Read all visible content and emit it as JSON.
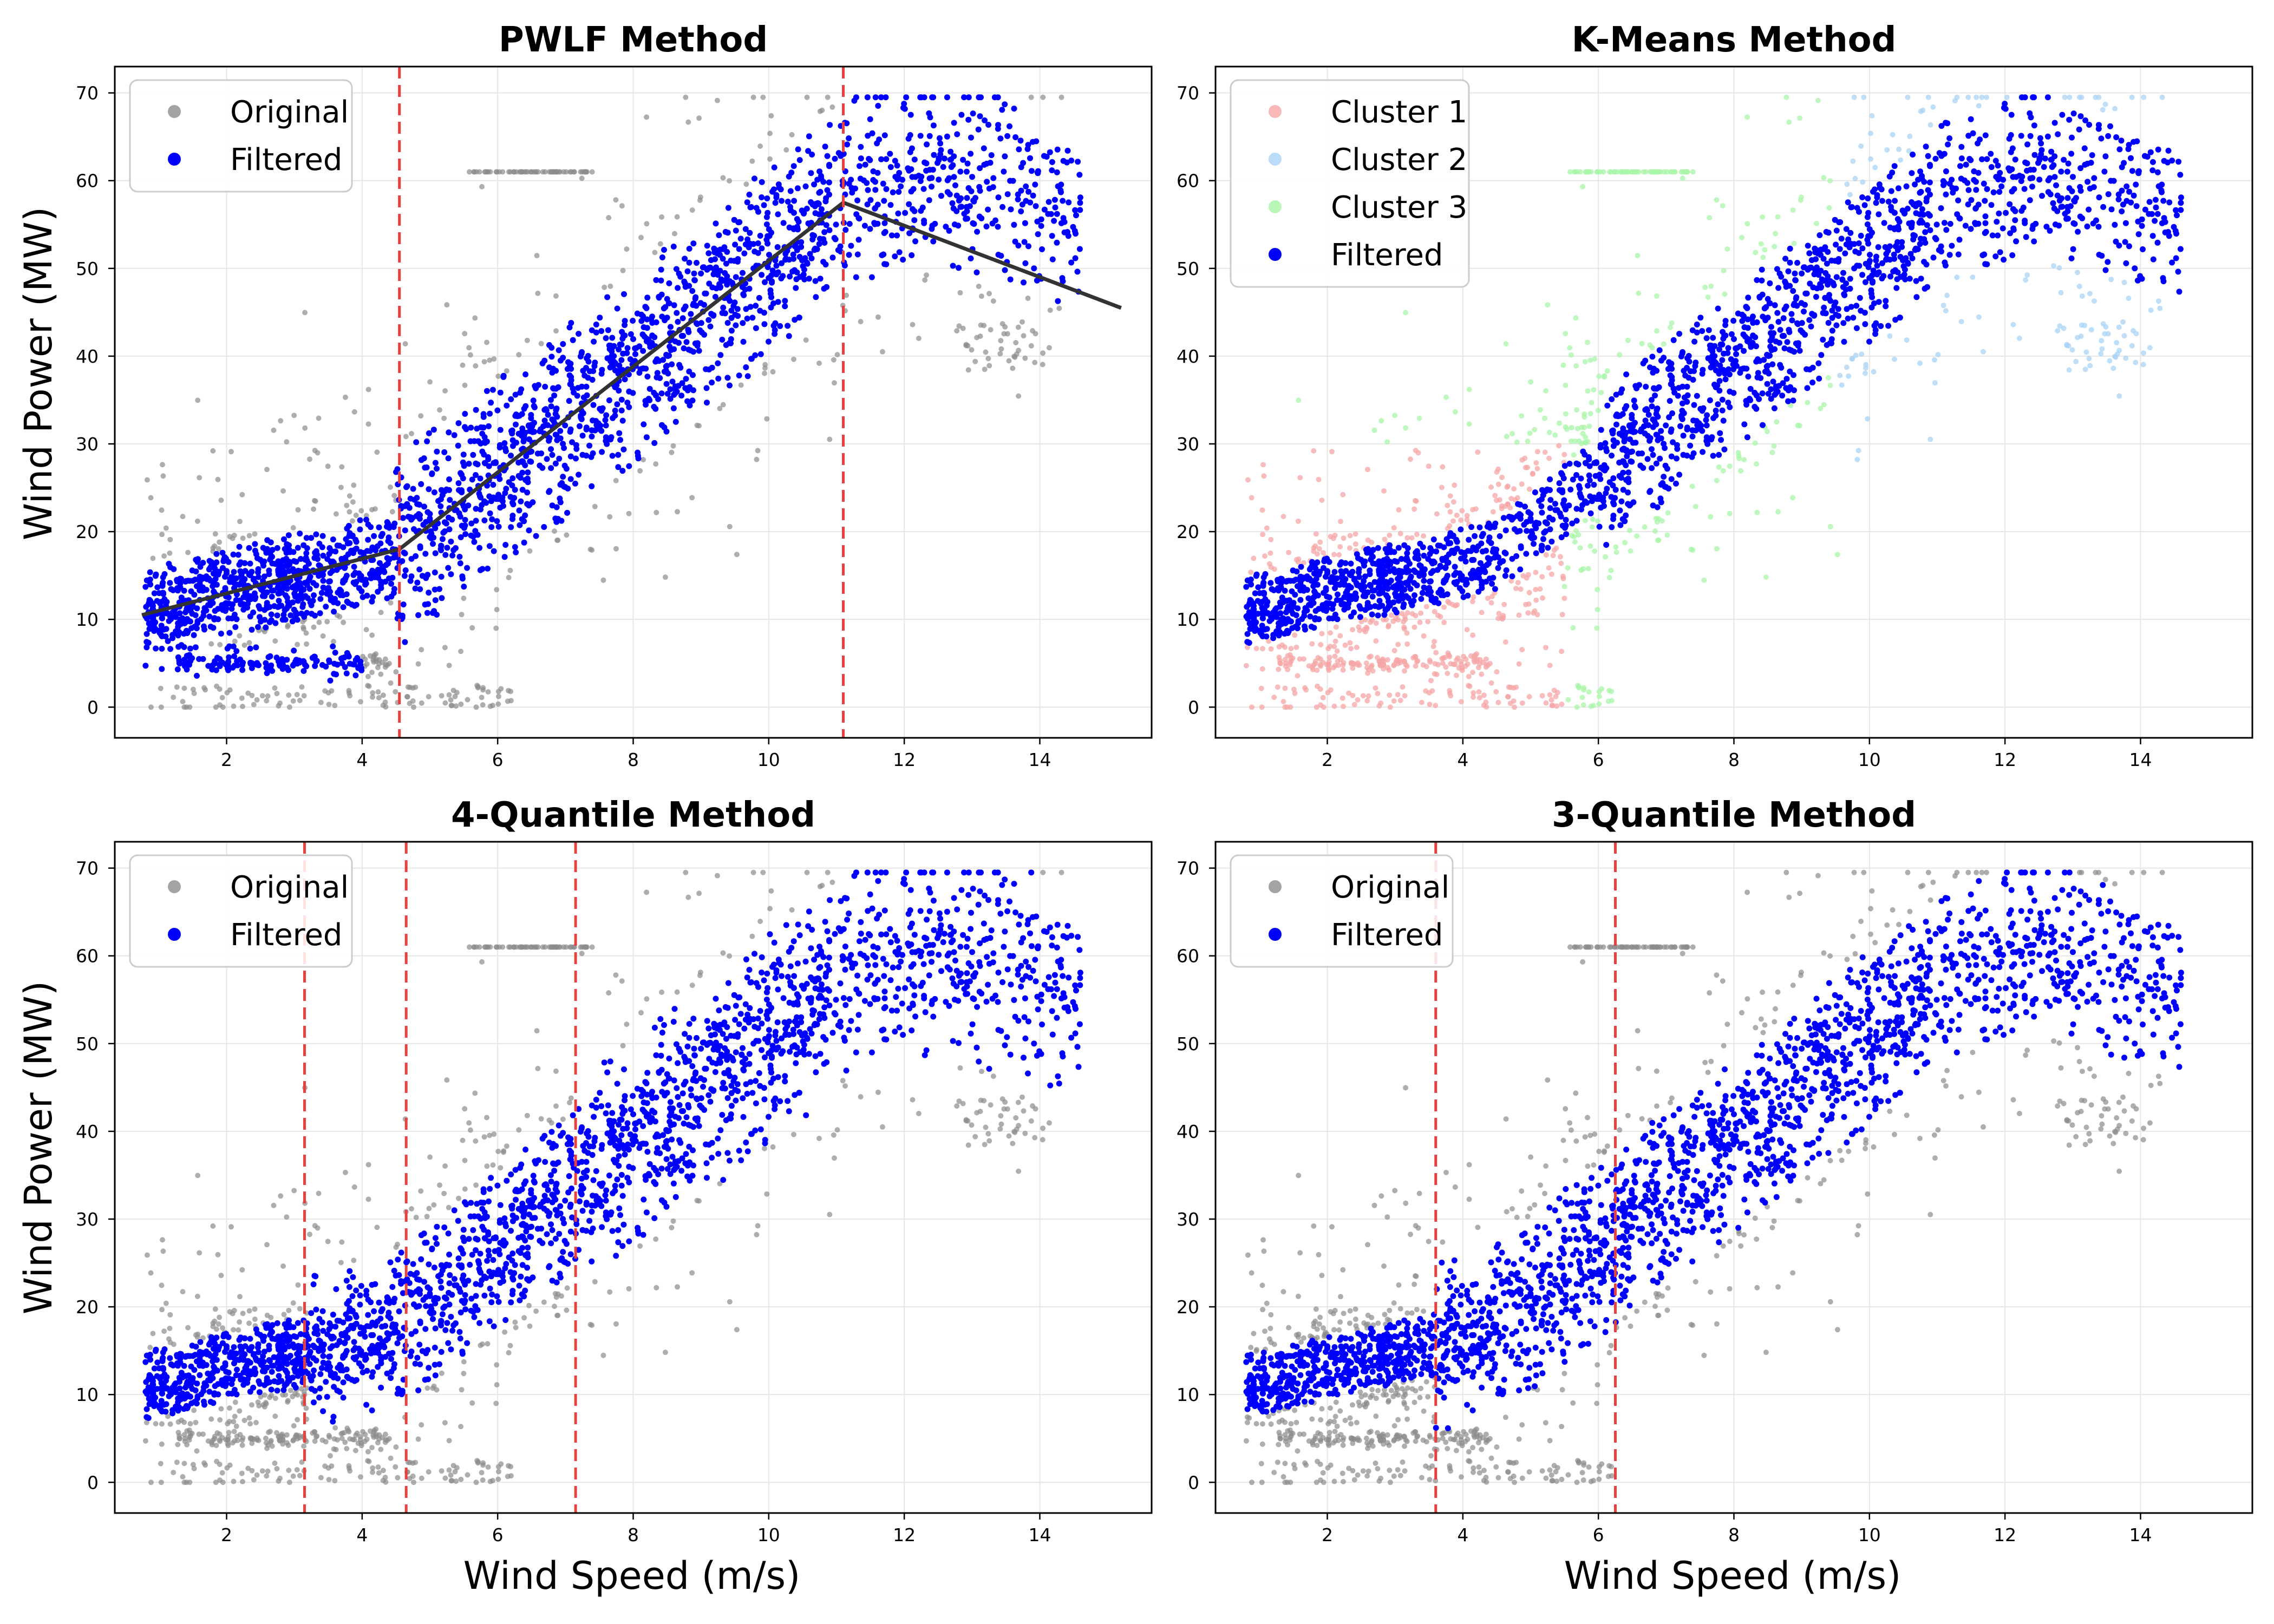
{
  "figure": {
    "ylabel": "Wind Power (MW)",
    "xlabel": "Wind Speed (m/s)"
  },
  "colors": {
    "original": "#8c8c8c",
    "filtered": "#0000ff",
    "threshold": "#e8403f",
    "fit": "#333333",
    "cluster1": "#f6a6a6",
    "cluster2": "#a9d3f6",
    "cluster3": "#a8f5a8",
    "grid": "#e6e6e6"
  },
  "chart_data": [
    {
      "type": "scatter",
      "title": "PWLF Method",
      "xlabel": "",
      "ylabel": "Wind Power (MW)",
      "xlim": [
        0.35,
        15.65
      ],
      "ylim": [
        -3.5,
        73
      ],
      "xticks": [
        2,
        4,
        6,
        8,
        10,
        12,
        14
      ],
      "yticks": [
        0,
        10,
        20,
        30,
        40,
        50,
        60,
        70
      ],
      "grid": true,
      "legend_position": "top-left",
      "legend": [
        "Original",
        "Filtered"
      ],
      "series": [
        {
          "name": "Original",
          "role": "original",
          "kind": "points"
        },
        {
          "name": "Filtered",
          "role": "filtered",
          "kind": "points"
        }
      ],
      "vlines": [
        4.55,
        11.1
      ],
      "fit_line": {
        "x": [
          0.75,
          4.55,
          11.1,
          15.2
        ],
        "y": [
          10.5,
          18.0,
          57.5,
          45.5
        ]
      }
    },
    {
      "type": "scatter",
      "title": "K-Means Method",
      "xlabel": "",
      "ylabel": "",
      "xlim": [
        0.35,
        15.65
      ],
      "ylim": [
        -3.5,
        73
      ],
      "xticks": [
        2,
        4,
        6,
        8,
        10,
        12,
        14
      ],
      "yticks": [
        0,
        10,
        20,
        30,
        40,
        50,
        60,
        70
      ],
      "grid": true,
      "legend_position": "top-left",
      "legend": [
        "Cluster 1",
        "Cluster 2",
        "Cluster 3",
        "Filtered"
      ],
      "series": [
        {
          "name": "Cluster 1",
          "role": "cluster1",
          "kind": "points"
        },
        {
          "name": "Cluster 2",
          "role": "cluster2",
          "kind": "points"
        },
        {
          "name": "Cluster 3",
          "role": "cluster3",
          "kind": "points"
        },
        {
          "name": "Filtered",
          "role": "filtered",
          "kind": "points"
        }
      ],
      "vlines": []
    },
    {
      "type": "scatter",
      "title": "4-Quantile Method",
      "xlabel": "Wind Speed (m/s)",
      "ylabel": "Wind Power (MW)",
      "xlim": [
        0.35,
        15.65
      ],
      "ylim": [
        -3.5,
        73
      ],
      "xticks": [
        2,
        4,
        6,
        8,
        10,
        12,
        14
      ],
      "yticks": [
        0,
        10,
        20,
        30,
        40,
        50,
        60,
        70
      ],
      "grid": true,
      "legend_position": "top-left",
      "legend": [
        "Original",
        "Filtered"
      ],
      "series": [
        {
          "name": "Original",
          "role": "original",
          "kind": "points"
        },
        {
          "name": "Filtered",
          "role": "filtered",
          "kind": "points"
        }
      ],
      "vlines": [
        3.15,
        4.65,
        7.15
      ]
    },
    {
      "type": "scatter",
      "title": "3-Quantile Method",
      "xlabel": "Wind Speed (m/s)",
      "ylabel": "",
      "xlim": [
        0.35,
        15.65
      ],
      "ylim": [
        -3.5,
        73
      ],
      "xticks": [
        2,
        4,
        6,
        8,
        10,
        12,
        14
      ],
      "yticks": [
        0,
        10,
        20,
        30,
        40,
        50,
        60,
        70
      ],
      "grid": true,
      "legend_position": "top-left",
      "legend": [
        "Original",
        "Filtered"
      ],
      "series": [
        {
          "name": "Original",
          "role": "original",
          "kind": "points"
        },
        {
          "name": "Filtered",
          "role": "filtered",
          "kind": "points"
        }
      ],
      "vlines": [
        3.6,
        6.25
      ]
    }
  ]
}
